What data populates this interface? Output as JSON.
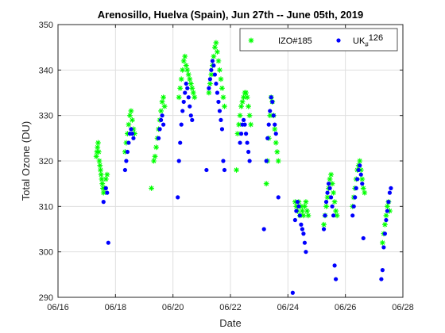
{
  "chart_data": {
    "type": "scatter",
    "title": "Arenosillo, Huelva (Spain), Jun 27th -- June 05th, 2019",
    "xlabel": "Date",
    "ylabel": "Total Ozone (DU)",
    "x_is_date": true,
    "xlim": [
      "2019-06-16",
      "2019-06-28"
    ],
    "ylim": [
      290,
      350
    ],
    "x_ticks": [
      "06/16",
      "06/18",
      "06/20",
      "06/22",
      "06/24",
      "06/26",
      "06/28"
    ],
    "y_ticks": [
      290,
      300,
      310,
      320,
      330,
      340,
      350
    ],
    "grid": true,
    "legend_position": "top-right",
    "series": [
      {
        "name": "IZO#185",
        "marker": "star",
        "color": "#00ff00",
        "points": [
          [
            "2019-06-17T08:00",
            321
          ],
          [
            "2019-06-17T08:30",
            322
          ],
          [
            "2019-06-17T09:00",
            323
          ],
          [
            "2019-06-17T09:30",
            324
          ],
          [
            "2019-06-17T10:00",
            322
          ],
          [
            "2019-06-17T10:30",
            320
          ],
          [
            "2019-06-17T11:00",
            319
          ],
          [
            "2019-06-17T11:30",
            318
          ],
          [
            "2019-06-17T12:00",
            317
          ],
          [
            "2019-06-17T12:30",
            316
          ],
          [
            "2019-06-17T13:00",
            315
          ],
          [
            "2019-06-17T13:30",
            314
          ],
          [
            "2019-06-17T14:00",
            313
          ],
          [
            "2019-06-17T15:00",
            314
          ],
          [
            "2019-06-17T16:00",
            316
          ],
          [
            "2019-06-17T17:00",
            317
          ],
          [
            "2019-06-18T08:00",
            322
          ],
          [
            "2019-06-18T09:00",
            324
          ],
          [
            "2019-06-18T10:00",
            326
          ],
          [
            "2019-06-18T11:00",
            328
          ],
          [
            "2019-06-18T12:00",
            330
          ],
          [
            "2019-06-18T13:00",
            331
          ],
          [
            "2019-06-18T14:00",
            329
          ],
          [
            "2019-06-18T15:00",
            327
          ],
          [
            "2019-06-18T16:00",
            326
          ],
          [
            "2019-06-19T06:00",
            314
          ],
          [
            "2019-06-19T08:00",
            320
          ],
          [
            "2019-06-19T09:00",
            321
          ],
          [
            "2019-06-19T10:00",
            323
          ],
          [
            "2019-06-19T11:00",
            325
          ],
          [
            "2019-06-19T12:00",
            327
          ],
          [
            "2019-06-19T13:00",
            329
          ],
          [
            "2019-06-19T14:00",
            331
          ],
          [
            "2019-06-19T15:00",
            333
          ],
          [
            "2019-06-19T16:00",
            334
          ],
          [
            "2019-06-19T17:00",
            332
          ],
          [
            "2019-06-20T05:00",
            334
          ],
          [
            "2019-06-20T06:00",
            336
          ],
          [
            "2019-06-20T07:00",
            338
          ],
          [
            "2019-06-20T08:00",
            340
          ],
          [
            "2019-06-20T09:00",
            342
          ],
          [
            "2019-06-20T10:00",
            343
          ],
          [
            "2019-06-20T11:00",
            341
          ],
          [
            "2019-06-20T12:00",
            340
          ],
          [
            "2019-06-20T13:00",
            339
          ],
          [
            "2019-06-20T14:00",
            338
          ],
          [
            "2019-06-20T15:00",
            337
          ],
          [
            "2019-06-20T16:00",
            336
          ],
          [
            "2019-06-20T17:00",
            335
          ],
          [
            "2019-06-20T18:00",
            334
          ],
          [
            "2019-06-21T06:00",
            335
          ],
          [
            "2019-06-21T07:00",
            337
          ],
          [
            "2019-06-21T08:00",
            339
          ],
          [
            "2019-06-21T09:00",
            341
          ],
          [
            "2019-06-21T10:00",
            343
          ],
          [
            "2019-06-21T11:00",
            345
          ],
          [
            "2019-06-21T12:00",
            346
          ],
          [
            "2019-06-21T13:00",
            344
          ],
          [
            "2019-06-21T14:00",
            342
          ],
          [
            "2019-06-21T15:00",
            340
          ],
          [
            "2019-06-21T16:00",
            338
          ],
          [
            "2019-06-21T17:00",
            336
          ],
          [
            "2019-06-21T18:00",
            334
          ],
          [
            "2019-06-21T19:00",
            332
          ],
          [
            "2019-06-22T05:00",
            318
          ],
          [
            "2019-06-22T06:00",
            326
          ],
          [
            "2019-06-22T07:00",
            328
          ],
          [
            "2019-06-22T08:00",
            330
          ],
          [
            "2019-06-22T09:00",
            332
          ],
          [
            "2019-06-22T10:00",
            333
          ],
          [
            "2019-06-22T11:00",
            334
          ],
          [
            "2019-06-22T12:00",
            335
          ],
          [
            "2019-06-22T13:00",
            335
          ],
          [
            "2019-06-22T14:00",
            334
          ],
          [
            "2019-06-22T15:00",
            332
          ],
          [
            "2019-06-22T16:00",
            330
          ],
          [
            "2019-06-22T17:00",
            328
          ],
          [
            "2019-06-23T06:00",
            315
          ],
          [
            "2019-06-23T07:00",
            320
          ],
          [
            "2019-06-23T08:00",
            325
          ],
          [
            "2019-06-23T09:00",
            330
          ],
          [
            "2019-06-23T10:00",
            334
          ],
          [
            "2019-06-23T11:00",
            333
          ],
          [
            "2019-06-23T12:00",
            330
          ],
          [
            "2019-06-23T13:00",
            327
          ],
          [
            "2019-06-23T14:00",
            324
          ],
          [
            "2019-06-23T15:00",
            322
          ],
          [
            "2019-06-23T16:00",
            320
          ],
          [
            "2019-06-24T06:00",
            311
          ],
          [
            "2019-06-24T07:00",
            310
          ],
          [
            "2019-06-24T08:00",
            309
          ],
          [
            "2019-06-24T09:00",
            311
          ],
          [
            "2019-06-24T10:00",
            308
          ],
          [
            "2019-06-24T11:00",
            310
          ],
          [
            "2019-06-24T12:00",
            309
          ],
          [
            "2019-06-24T13:00",
            308
          ],
          [
            "2019-06-24T14:00",
            310
          ],
          [
            "2019-06-24T15:00",
            311
          ],
          [
            "2019-06-24T16:00",
            309
          ],
          [
            "2019-06-24T17:00",
            308
          ],
          [
            "2019-06-25T06:00",
            306
          ],
          [
            "2019-06-25T07:00",
            308
          ],
          [
            "2019-06-25T08:00",
            310
          ],
          [
            "2019-06-25T09:00",
            312
          ],
          [
            "2019-06-25T10:00",
            314
          ],
          [
            "2019-06-25T11:00",
            316
          ],
          [
            "2019-06-25T12:00",
            317
          ],
          [
            "2019-06-25T13:00",
            315
          ],
          [
            "2019-06-25T14:00",
            313
          ],
          [
            "2019-06-25T15:00",
            311
          ],
          [
            "2019-06-25T16:00",
            309
          ],
          [
            "2019-06-25T17:00",
            308
          ],
          [
            "2019-06-26T06:00",
            310
          ],
          [
            "2019-06-26T07:00",
            312
          ],
          [
            "2019-06-26T08:00",
            314
          ],
          [
            "2019-06-26T09:00",
            316
          ],
          [
            "2019-06-26T10:00",
            318
          ],
          [
            "2019-06-26T11:00",
            319
          ],
          [
            "2019-06-26T12:00",
            320
          ],
          [
            "2019-06-26T13:00",
            318
          ],
          [
            "2019-06-26T14:00",
            316
          ],
          [
            "2019-06-26T15:00",
            314
          ],
          [
            "2019-06-26T16:00",
            313
          ],
          [
            "2019-06-27T07:00",
            302
          ],
          [
            "2019-06-27T08:00",
            304
          ],
          [
            "2019-06-27T09:00",
            306
          ],
          [
            "2019-06-27T10:00",
            308
          ],
          [
            "2019-06-27T11:00",
            310
          ],
          [
            "2019-06-27T12:00",
            311
          ],
          [
            "2019-06-27T13:00",
            309
          ]
        ]
      },
      {
        "name": "UK#126",
        "name_parts": [
          "UK",
          "#",
          "126"
        ],
        "marker": "dot",
        "color": "#0000ff",
        "points": [
          [
            "2019-06-17T14:00",
            311
          ],
          [
            "2019-06-17T16:00",
            314
          ],
          [
            "2019-06-17T17:00",
            313
          ],
          [
            "2019-06-17T18:00",
            302
          ],
          [
            "2019-06-18T08:00",
            318
          ],
          [
            "2019-06-18T09:00",
            320
          ],
          [
            "2019-06-18T10:00",
            322
          ],
          [
            "2019-06-18T11:00",
            324
          ],
          [
            "2019-06-18T12:00",
            326
          ],
          [
            "2019-06-18T13:00",
            327
          ],
          [
            "2019-06-18T14:00",
            326
          ],
          [
            "2019-06-18T15:00",
            325
          ],
          [
            "2019-06-19T12:00",
            325
          ],
          [
            "2019-06-19T13:00",
            327
          ],
          [
            "2019-06-19T14:00",
            329
          ],
          [
            "2019-06-19T15:00",
            330
          ],
          [
            "2019-06-19T16:00",
            328
          ],
          [
            "2019-06-20T04:00",
            312
          ],
          [
            "2019-06-20T05:00",
            320
          ],
          [
            "2019-06-20T06:00",
            324
          ],
          [
            "2019-06-20T07:00",
            328
          ],
          [
            "2019-06-20T08:00",
            331
          ],
          [
            "2019-06-20T09:00",
            333
          ],
          [
            "2019-06-20T10:00",
            335
          ],
          [
            "2019-06-20T11:00",
            337
          ],
          [
            "2019-06-20T12:00",
            336
          ],
          [
            "2019-06-20T13:00",
            334
          ],
          [
            "2019-06-20T14:00",
            332
          ],
          [
            "2019-06-20T15:00",
            330
          ],
          [
            "2019-06-20T16:00",
            329
          ],
          [
            "2019-06-21T04:00",
            318
          ],
          [
            "2019-06-21T06:00",
            336
          ],
          [
            "2019-06-21T07:00",
            338
          ],
          [
            "2019-06-21T08:00",
            340
          ],
          [
            "2019-06-21T09:00",
            342
          ],
          [
            "2019-06-21T10:00",
            341
          ],
          [
            "2019-06-21T11:00",
            339
          ],
          [
            "2019-06-21T12:00",
            337
          ],
          [
            "2019-06-21T13:00",
            335
          ],
          [
            "2019-06-21T14:00",
            333
          ],
          [
            "2019-06-21T15:00",
            331
          ],
          [
            "2019-06-21T16:00",
            329
          ],
          [
            "2019-06-21T17:00",
            327
          ],
          [
            "2019-06-21T18:00",
            320
          ],
          [
            "2019-06-21T19:00",
            318
          ],
          [
            "2019-06-22T08:00",
            324
          ],
          [
            "2019-06-22T09:00",
            326
          ],
          [
            "2019-06-22T10:00",
            328
          ],
          [
            "2019-06-22T11:00",
            329
          ],
          [
            "2019-06-22T12:00",
            328
          ],
          [
            "2019-06-22T13:00",
            326
          ],
          [
            "2019-06-22T14:00",
            324
          ],
          [
            "2019-06-22T15:00",
            322
          ],
          [
            "2019-06-22T16:00",
            320
          ],
          [
            "2019-06-23T04:00",
            305
          ],
          [
            "2019-06-23T06:00",
            320
          ],
          [
            "2019-06-23T07:00",
            325
          ],
          [
            "2019-06-23T08:00",
            328
          ],
          [
            "2019-06-23T09:00",
            331
          ],
          [
            "2019-06-23T10:00",
            334
          ],
          [
            "2019-06-23T11:00",
            333
          ],
          [
            "2019-06-23T12:00",
            330
          ],
          [
            "2019-06-23T13:00",
            328
          ],
          [
            "2019-06-23T14:00",
            326
          ],
          [
            "2019-06-23T16:00",
            312
          ],
          [
            "2019-06-24T04:00",
            291
          ],
          [
            "2019-06-24T06:00",
            307
          ],
          [
            "2019-06-24T07:00",
            309
          ],
          [
            "2019-06-24T08:00",
            311
          ],
          [
            "2019-06-24T09:00",
            310
          ],
          [
            "2019-06-24T10:00",
            308
          ],
          [
            "2019-06-24T11:00",
            306
          ],
          [
            "2019-06-24T12:00",
            305
          ],
          [
            "2019-06-24T13:00",
            304
          ],
          [
            "2019-06-24T14:00",
            302
          ],
          [
            "2019-06-24T15:00",
            300
          ],
          [
            "2019-06-25T06:00",
            305
          ],
          [
            "2019-06-25T07:00",
            308
          ],
          [
            "2019-06-25T08:00",
            311
          ],
          [
            "2019-06-25T09:00",
            313
          ],
          [
            "2019-06-25T10:00",
            315
          ],
          [
            "2019-06-25T11:00",
            314
          ],
          [
            "2019-06-25T12:00",
            312
          ],
          [
            "2019-06-25T13:00",
            310
          ],
          [
            "2019-06-25T14:00",
            308
          ],
          [
            "2019-06-25T15:00",
            297
          ],
          [
            "2019-06-25T16:00",
            294
          ],
          [
            "2019-06-26T06:00",
            308
          ],
          [
            "2019-06-26T07:00",
            310
          ],
          [
            "2019-06-26T08:00",
            312
          ],
          [
            "2019-06-26T09:00",
            314
          ],
          [
            "2019-06-26T10:00",
            316
          ],
          [
            "2019-06-26T11:00",
            318
          ],
          [
            "2019-06-26T12:00",
            319
          ],
          [
            "2019-06-26T13:00",
            317
          ],
          [
            "2019-06-26T14:00",
            315
          ],
          [
            "2019-06-26T15:00",
            303
          ],
          [
            "2019-06-27T06:00",
            294
          ],
          [
            "2019-06-27T07:00",
            296
          ],
          [
            "2019-06-27T08:00",
            301
          ],
          [
            "2019-06-27T09:00",
            304
          ],
          [
            "2019-06-27T10:00",
            307
          ],
          [
            "2019-06-27T11:00",
            309
          ],
          [
            "2019-06-27T12:00",
            311
          ],
          [
            "2019-06-27T13:00",
            313
          ],
          [
            "2019-06-27T14:00",
            314
          ]
        ]
      }
    ]
  }
}
